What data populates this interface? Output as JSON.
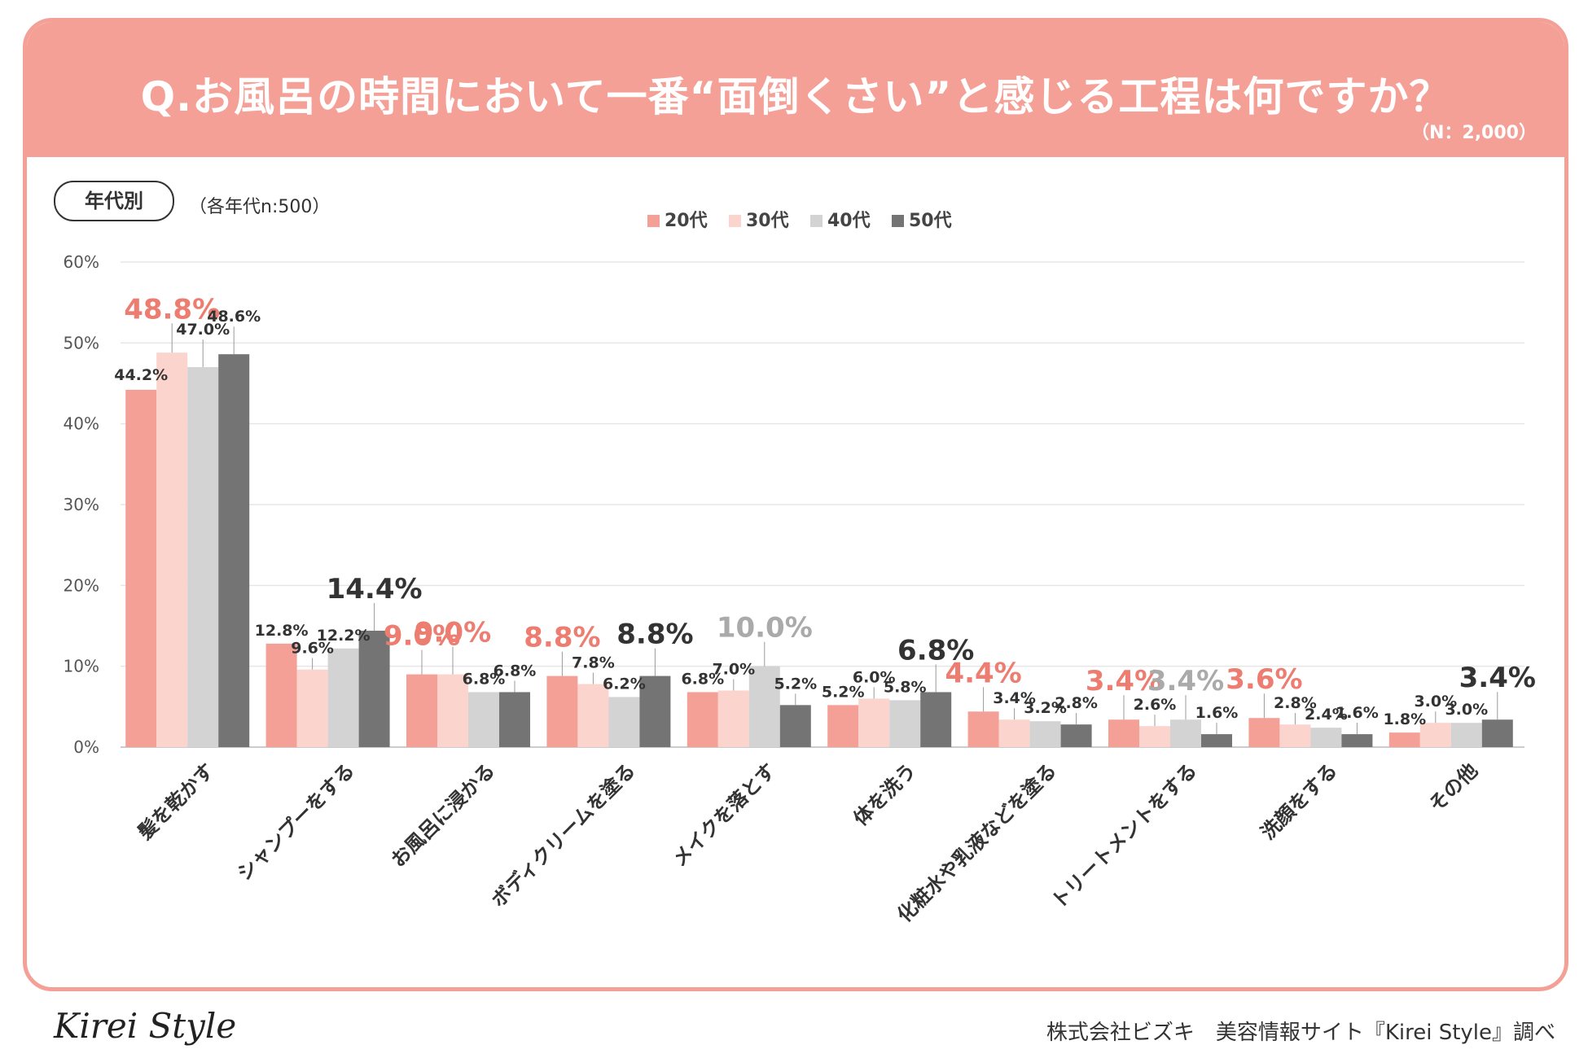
{
  "header": {
    "title": "Q.お風呂の時間において一番“面倒くさい”と感じる工程は何ですか？",
    "sample": "（N：2,000）"
  },
  "segment": {
    "label": "年代別",
    "note": "（各年代n:500）"
  },
  "colors": {
    "banner": "#f4a097",
    "20s": "#f4a097",
    "30s": "#fbd4ce",
    "40s": "#d3d3d3",
    "50s": "#747474",
    "highlight_red": "#ec7d70",
    "highlight_gray": "#aaaaaa",
    "highlight_dark": "#333333"
  },
  "chart_data": {
    "type": "bar",
    "title": "Q.お風呂の時間において一番“面倒くさい”と感じる工程は何ですか？",
    "ylim": [
      0,
      60
    ],
    "yticks": [
      "0%",
      "10%",
      "20%",
      "30%",
      "40%",
      "50%",
      "60%"
    ],
    "grid": true,
    "legend_position": "top-center",
    "categories": [
      "髪を乾かす",
      "シャンプーをする",
      "お風呂に浸かる",
      "ボディクリームを塗る",
      "メイクを落とす",
      "体を洗う",
      "化粧水や乳液などを塗る",
      "トリートメントをする",
      "洗顔をする",
      "その他"
    ],
    "series": [
      {
        "name": "20代",
        "values": [
          44.2,
          12.8,
          9.0,
          8.8,
          6.8,
          5.2,
          4.4,
          3.4,
          3.6,
          1.8
        ],
        "labels": [
          "44.2%",
          "12.8%",
          "9.0%",
          "8.8%",
          "6.8%",
          "5.2%",
          "4.4%",
          "3.4%",
          "3.6%",
          "1.8%"
        ]
      },
      {
        "name": "30代",
        "values": [
          48.8,
          9.6,
          9.0,
          7.8,
          7.0,
          6.0,
          3.4,
          2.6,
          2.8,
          3.0
        ],
        "labels": [
          "48.8%",
          "9.6%",
          "9.0%",
          "7.8%",
          "7.0%",
          "6.0%",
          "3.4%",
          "2.6%",
          "2.8%",
          "3.0%"
        ]
      },
      {
        "name": "40代",
        "values": [
          47.0,
          12.2,
          6.8,
          6.2,
          10.0,
          5.8,
          3.2,
          3.4,
          2.4,
          3.0
        ],
        "labels": [
          "47.0%",
          "12.2%",
          "6.8%",
          "6.2%",
          "10.0%",
          "5.8%",
          "3.2%",
          "3.4%",
          "2.4%",
          "3.0%"
        ]
      },
      {
        "name": "50代",
        "values": [
          48.6,
          14.4,
          6.8,
          8.8,
          5.2,
          6.8,
          2.8,
          1.6,
          1.6,
          3.4
        ],
        "labels": [
          "48.6%",
          "14.4%",
          "6.8%",
          "8.8%",
          "5.2%",
          "6.8%",
          "2.8%",
          "1.6%",
          "1.6%",
          "3.4%"
        ]
      }
    ],
    "highlights": [
      [
        0,
        1
      ],
      [
        1,
        3
      ],
      [
        2,
        0
      ],
      [
        2,
        1
      ],
      [
        3,
        0
      ],
      [
        3,
        3
      ],
      [
        4,
        2
      ],
      [
        5,
        3
      ],
      [
        6,
        0
      ],
      [
        7,
        0
      ],
      [
        7,
        2
      ],
      [
        8,
        0
      ],
      [
        9,
        3
      ]
    ]
  },
  "footer": {
    "logo": "Kirei Style",
    "credit": "株式会社ビズキ　美容情報サイト『Kirei Style』調べ"
  }
}
